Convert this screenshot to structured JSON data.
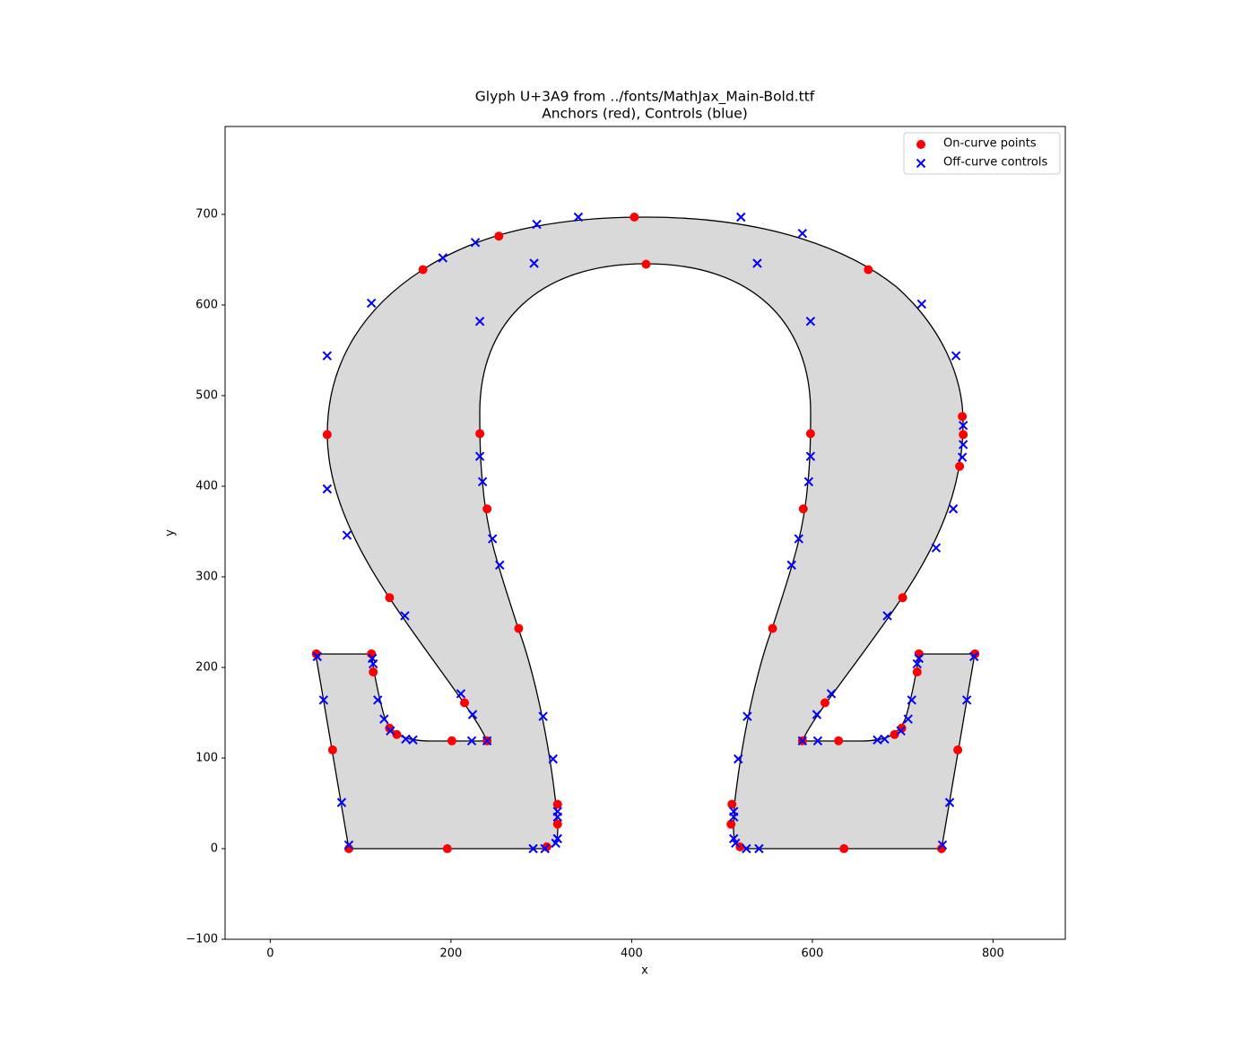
{
  "chart_data": {
    "type": "scatter",
    "title": "Glyph U+3A9 from ../fonts/MathJax_Main-Bold.ttf",
    "subtitle": "Anchors (red), Controls (blue)",
    "xlabel": "x",
    "ylabel": "y",
    "xlim": [
      -50,
      880
    ],
    "ylim": [
      -100,
      797
    ],
    "xticks": [
      0,
      200,
      400,
      600,
      800
    ],
    "yticks": [
      {
        "value": -100,
        "label": "−100"
      },
      0,
      100,
      200,
      300,
      400,
      500,
      600,
      700
    ],
    "grid": false,
    "legend": "upper right",
    "series": [
      {
        "name": "On-curve points",
        "color": "red",
        "marker": "o",
        "x": [
          403,
          253,
          169,
          63,
          132,
          215,
          240,
          201,
          140,
          132,
          114,
          112,
          51,
          69,
          87,
          196,
          306,
          318,
          318,
          275,
          240,
          232,
          416,
          598,
          590,
          556,
          511,
          510,
          520,
          635,
          743,
          761,
          780,
          718,
          716,
          699,
          691,
          629,
          589,
          614,
          700,
          763,
          767,
          766,
          662
        ],
        "values": [
          697,
          676,
          639,
          457,
          277,
          161,
          119,
          119,
          126,
          133,
          195,
          215,
          215,
          109,
          0,
          0,
          2,
          27,
          49,
          243,
          375,
          458,
          645,
          458,
          375,
          243,
          49,
          27,
          2,
          0,
          0,
          109,
          215,
          215,
          195,
          133,
          126,
          119,
          119,
          161,
          277,
          422,
          457,
          477,
          639
        ]
      },
      {
        "name": "Off-curve controls",
        "color": "blue",
        "marker": "x",
        "x": [
          341,
          295,
          227,
          191,
          112,
          63,
          63,
          85,
          149,
          211,
          224,
          223,
          240,
          158,
          150,
          133,
          126,
          119,
          114,
          113,
          52,
          59,
          79,
          87,
          291,
          304,
          316,
          318,
          318,
          318,
          313,
          302,
          254,
          246,
          235,
          232,
          232,
          292,
          539,
          598,
          521,
          589,
          721,
          759,
          767,
          767,
          766,
          756,
          737,
          683,
          621,
          605,
          606,
          589,
          672,
          680,
          698,
          706,
          710,
          716,
          718,
          779,
          771,
          752,
          744,
          541,
          527,
          515,
          513,
          513,
          513,
          518,
          528,
          577,
          585,
          596,
          598
        ],
        "values": [
          697,
          689,
          669,
          652,
          602,
          544,
          397,
          346,
          257,
          171,
          148,
          119,
          119,
          120,
          121,
          130,
          143,
          164,
          204,
          210,
          212,
          164,
          51,
          4,
          0,
          0,
          6,
          11,
          35,
          41,
          99,
          146,
          313,
          342,
          405,
          433,
          582,
          646,
          646,
          582,
          697,
          679,
          601,
          544,
          467,
          446,
          432,
          375,
          332,
          257,
          171,
          148,
          119,
          119,
          120,
          121,
          130,
          143,
          164,
          204,
          210,
          212,
          164,
          51,
          4,
          0,
          0,
          6,
          11,
          35,
          41,
          99,
          146,
          313,
          342,
          405,
          433
        ]
      }
    ]
  }
}
